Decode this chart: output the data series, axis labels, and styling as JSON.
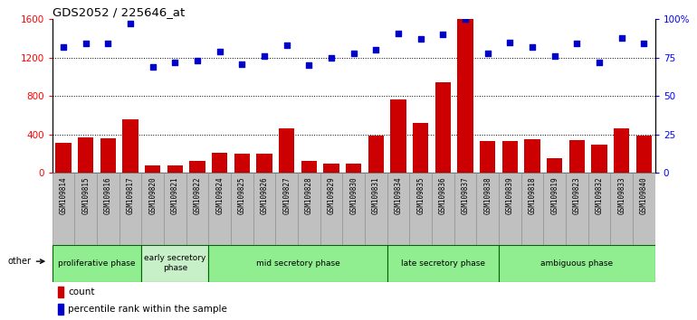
{
  "title": "GDS2052 / 225646_at",
  "categories": [
    "GSM109814",
    "GSM109815",
    "GSM109816",
    "GSM109817",
    "GSM109820",
    "GSM109821",
    "GSM109822",
    "GSM109824",
    "GSM109825",
    "GSM109826",
    "GSM109827",
    "GSM109828",
    "GSM109829",
    "GSM109830",
    "GSM109831",
    "GSM109834",
    "GSM109835",
    "GSM109836",
    "GSM109837",
    "GSM109838",
    "GSM109839",
    "GSM109818",
    "GSM109819",
    "GSM109823",
    "GSM109832",
    "GSM109833",
    "GSM109840"
  ],
  "counts": [
    310,
    370,
    360,
    560,
    80,
    80,
    120,
    210,
    195,
    195,
    460,
    120,
    100,
    100,
    390,
    760,
    520,
    940,
    1610,
    330,
    330,
    350,
    150,
    340,
    295,
    460,
    390
  ],
  "percentiles": [
    82,
    84,
    84,
    97,
    69,
    72,
    73,
    79,
    71,
    76,
    83,
    70,
    75,
    78,
    80,
    91,
    87,
    90,
    100,
    78,
    85,
    82,
    76,
    84,
    72,
    88,
    84
  ],
  "phases": [
    {
      "label": "proliferative phase",
      "start": 0,
      "end": 4,
      "color": "#90EE90"
    },
    {
      "label": "early secretory\nphase",
      "start": 4,
      "end": 7,
      "color": "#c8f0c8"
    },
    {
      "label": "mid secretory phase",
      "start": 7,
      "end": 15,
      "color": "#90EE90"
    },
    {
      "label": "late secretory phase",
      "start": 15,
      "end": 20,
      "color": "#90EE90"
    },
    {
      "label": "ambiguous phase",
      "start": 20,
      "end": 27,
      "color": "#90EE90"
    }
  ],
  "other_label": "other",
  "bar_color": "#cc0000",
  "dot_color": "#0000cc",
  "ylim_left": [
    0,
    1600
  ],
  "ylim_right": [
    0,
    100
  ],
  "yticks_left": [
    0,
    400,
    800,
    1200,
    1600
  ],
  "yticks_right": [
    0,
    25,
    50,
    75,
    100
  ],
  "grid_vals": [
    400,
    800,
    1200
  ],
  "tick_bg_color": "#c0c0c0",
  "phase_border_color": "#006600"
}
